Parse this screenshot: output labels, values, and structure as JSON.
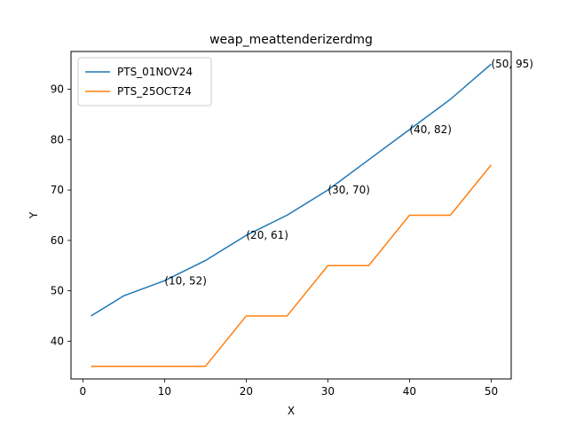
{
  "chart_data": {
    "type": "line",
    "title": "weap_meattenderizerdmg",
    "xlabel": "X",
    "ylabel": "Y",
    "xlim": [
      -1.45,
      52.45
    ],
    "ylim": [
      32.5,
      97.5
    ],
    "xticks": [
      0,
      10,
      20,
      30,
      40,
      50
    ],
    "yticks": [
      40,
      50,
      60,
      70,
      80,
      90
    ],
    "grid": false,
    "legend_position": "upper left",
    "series": [
      {
        "name": "PTS_01NOV24",
        "color": "#1f77b4",
        "x": [
          1,
          5,
          10,
          15,
          20,
          25,
          30,
          35,
          40,
          45,
          50
        ],
        "y": [
          45,
          49,
          52,
          56,
          61,
          65,
          70,
          76,
          82,
          88,
          95
        ]
      },
      {
        "name": "PTS_25OCT24",
        "color": "#ff7f0e",
        "x": [
          1,
          5,
          10,
          15,
          20,
          25,
          30,
          35,
          40,
          45,
          50
        ],
        "y": [
          35,
          35,
          35,
          35,
          45,
          45,
          55,
          55,
          65,
          65,
          75
        ]
      }
    ],
    "annotations": [
      {
        "text": "(10, 52)",
        "x": 10,
        "y": 52
      },
      {
        "text": "(20, 61)",
        "x": 20,
        "y": 61
      },
      {
        "text": "(30, 70)",
        "x": 30,
        "y": 70
      },
      {
        "text": "(40, 82)",
        "x": 40,
        "y": 82
      },
      {
        "text": "(50, 95)",
        "x": 50,
        "y": 95
      }
    ]
  }
}
